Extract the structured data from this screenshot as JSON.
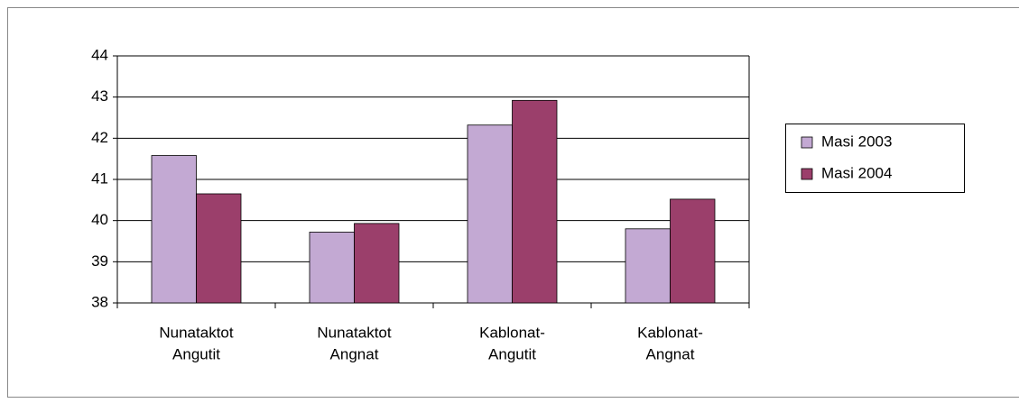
{
  "chart_data": {
    "type": "bar",
    "categories": [
      [
        "Nunataktot",
        "Angutit"
      ],
      [
        "Nunataktot",
        "Angnat"
      ],
      [
        "Kablonat-",
        "Angutit"
      ],
      [
        "Kablonat-",
        "Angnat"
      ]
    ],
    "series": [
      {
        "name": "Masi 2003",
        "color": "#c3a9d3",
        "values": [
          41.58,
          39.72,
          42.32,
          39.8
        ]
      },
      {
        "name": "Masi 2004",
        "color": "#9b3f6b",
        "values": [
          40.65,
          39.93,
          42.92,
          40.52
        ]
      }
    ],
    "ylim": [
      38,
      44
    ],
    "yticks": [
      38,
      39,
      40,
      41,
      42,
      43,
      44
    ],
    "grid": true,
    "legend": "right"
  }
}
